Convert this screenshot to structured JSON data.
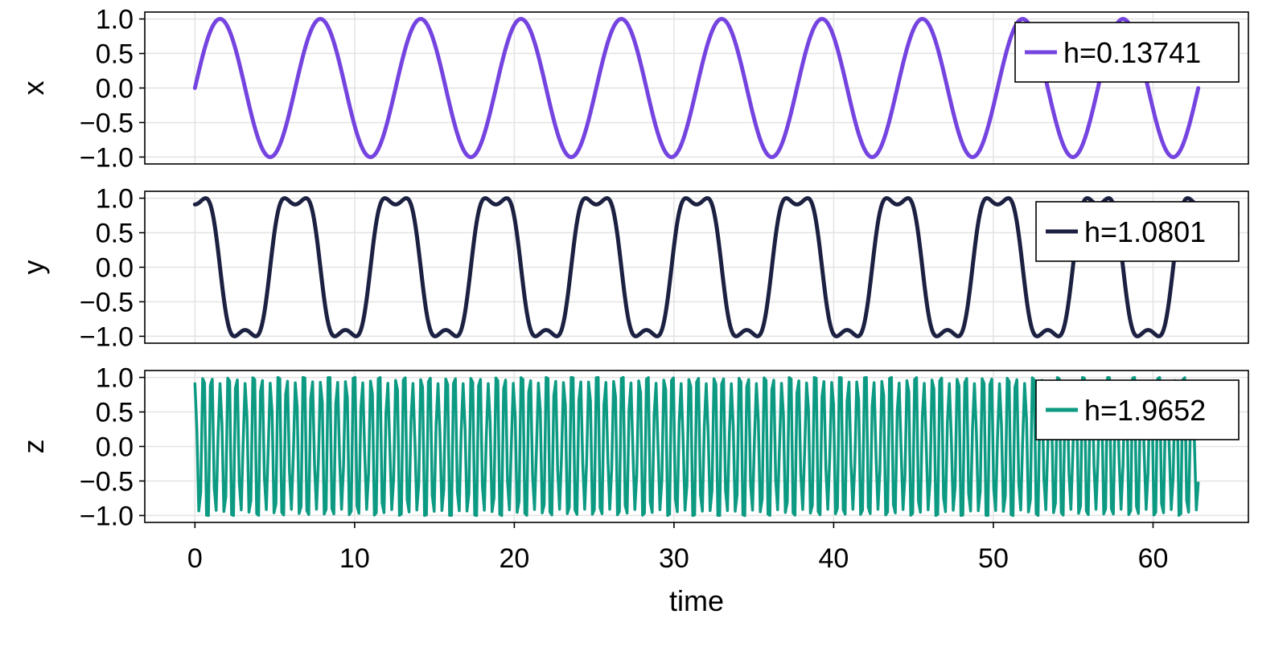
{
  "chart_data": [
    {
      "type": "line",
      "panel": "x",
      "ylabel": "x",
      "xlim": [
        -3.14,
        65.97
      ],
      "ylim": [
        -1.1,
        1.1
      ],
      "yticks": [
        1.0,
        0.5,
        0.0,
        -0.5,
        -1.0
      ],
      "ytick_labels": [
        "1.0",
        "0.5",
        "0.0",
        "−0.5",
        "−1.0"
      ],
      "xticks": [
        0,
        10,
        20,
        30,
        40,
        50,
        60
      ],
      "grid": true,
      "legend_position": "top-right",
      "series": [
        {
          "name": "h=0.13741",
          "color": "#7544e0",
          "function": "sin",
          "x_range": [
            0,
            62.83
          ],
          "note_shape": "x = sin(t)"
        }
      ]
    },
    {
      "type": "line",
      "panel": "y",
      "ylabel": "y",
      "xlim": [
        -3.14,
        65.97
      ],
      "ylim": [
        -1.1,
        1.1
      ],
      "yticks": [
        1.0,
        0.5,
        0.0,
        -0.5,
        -1.0
      ],
      "ytick_labels": [
        "1.0",
        "0.5",
        "0.0",
        "−0.5",
        "−1.0"
      ],
      "xticks": [
        0,
        10,
        20,
        30,
        40,
        50,
        60
      ],
      "grid": true,
      "legend_position": "top-right",
      "series": [
        {
          "name": "h=1.0801",
          "color": "#1c2142",
          "function": "sin(2cos(t))",
          "x_range": [
            0,
            62.83
          ]
        }
      ]
    },
    {
      "type": "line",
      "panel": "z",
      "ylabel": "z",
      "xlabel": "time",
      "xlim": [
        -3.14,
        65.97
      ],
      "ylim": [
        -1.1,
        1.1
      ],
      "yticks": [
        1.0,
        0.5,
        0.0,
        -0.5,
        -1.0
      ],
      "ytick_labels": [
        "1.0",
        "0.5",
        "0.0",
        "−0.5",
        "−1.0"
      ],
      "xticks": [
        0,
        10,
        20,
        30,
        40,
        50,
        60
      ],
      "xtick_labels": [
        "0",
        "10",
        "20",
        "30",
        "40",
        "50",
        "60"
      ],
      "grid": true,
      "legend_position": "top-right",
      "series": [
        {
          "name": "h=1.9652",
          "color": "#0c9a82",
          "function": "sin(1000*t)",
          "x_range": [
            0,
            62.83
          ]
        }
      ]
    }
  ]
}
